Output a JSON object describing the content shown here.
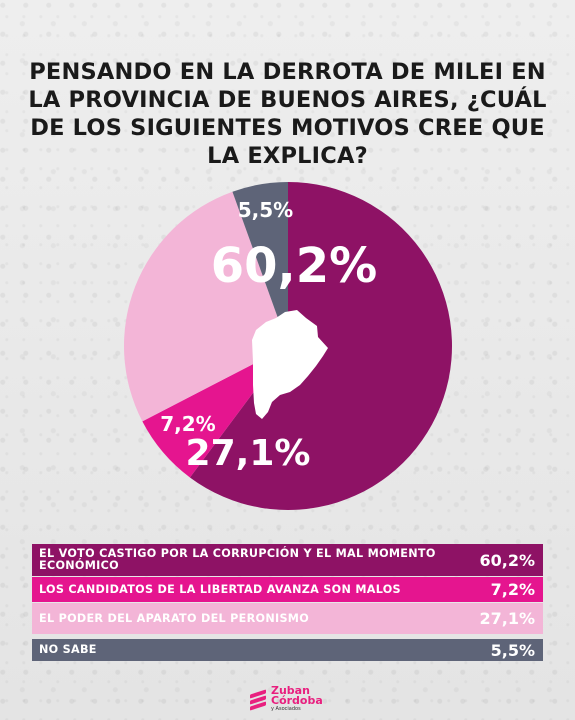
{
  "header": {
    "title": "PENSANDO EN LA DERROTA DE MILEI EN LA PROVINCIA DE BUENOS AIRES, ¿CUÁL DE LOS SIGUIENTES MOTIVOS CREE QUE LA EXPLICA?"
  },
  "chart_data": {
    "type": "pie",
    "title": "PENSANDO EN LA DERROTA DE MILEI EN LA PROVINCIA DE BUENOS AIRES, ¿CUÁL DE LOS SIGUIENTES MOTIVOS CREE QUE LA EXPLICA?",
    "categories": [
      "EL VOTO CASTIGO POR LA CORRUPCIÓN Y EL MAL MOMENTO ECONÓMICO",
      "LOS CANDIDATOS DE LA LIBERTAD AVANZA SON MALOS",
      "EL PODER DEL APARATO DEL PERONISMO",
      "NO SABE"
    ],
    "values": [
      60.2,
      7.2,
      27.1,
      5.5
    ],
    "labels": [
      "60,2%",
      "7,2%",
      "27,1%",
      "5,5%"
    ],
    "colors": [
      "#8e1265",
      "#e5158f",
      "#f3b5d7",
      "#5e6478"
    ],
    "value_label_colors": [
      "#ffffff",
      "#ffffff",
      "#ffffff",
      "#ffffff"
    ],
    "legend_placement": "bottom",
    "center_icon": "buenos-aires-province-map"
  },
  "legend": {
    "rows": [
      {
        "label": "EL VOTO CASTIGO POR LA CORRUPCIÓN Y EL MAL MOMENTO ECONÓMICO",
        "value": "60,2%",
        "bg": "#8e1265",
        "fg": "#ffffff"
      },
      {
        "label": "LOS CANDIDATOS DE LA LIBERTAD AVANZA SON MALOS",
        "value": "7,2%",
        "bg": "#e5158f",
        "fg": "#ffffff"
      },
      {
        "label": "EL PODER DEL APARATO DEL PERONISMO",
        "value": "27,1%",
        "bg": "#f3b5d7",
        "fg": "#ffffff"
      },
      {
        "label": "NO SABE",
        "value": "5,5%",
        "bg": "#5e6478",
        "fg": "#ffffff"
      }
    ]
  },
  "footer": {
    "logo_line1": "Zuban",
    "logo_line2": "Córdoba",
    "logo_line3": "y Asociados"
  }
}
